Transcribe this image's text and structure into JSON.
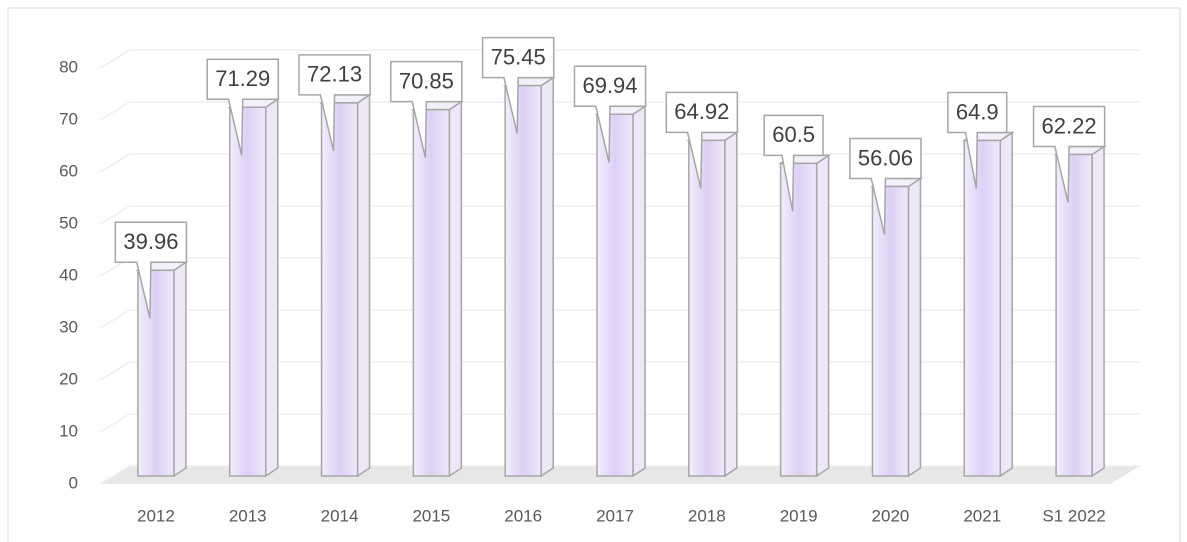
{
  "chart_data": {
    "type": "bar",
    "categories": [
      "2012",
      "2013",
      "2014",
      "2015",
      "2016",
      "2017",
      "2018",
      "2019",
      "2020",
      "2021",
      "S1 2022"
    ],
    "values": [
      39.96,
      71.29,
      72.13,
      70.85,
      75.45,
      69.94,
      64.92,
      60.5,
      56.06,
      64.9,
      62.22
    ],
    "color": "#e6dcf7",
    "ylim": [
      0,
      80
    ],
    "yticks": [
      0,
      10,
      20,
      30,
      40,
      50,
      60,
      70,
      80
    ],
    "grid": true
  }
}
